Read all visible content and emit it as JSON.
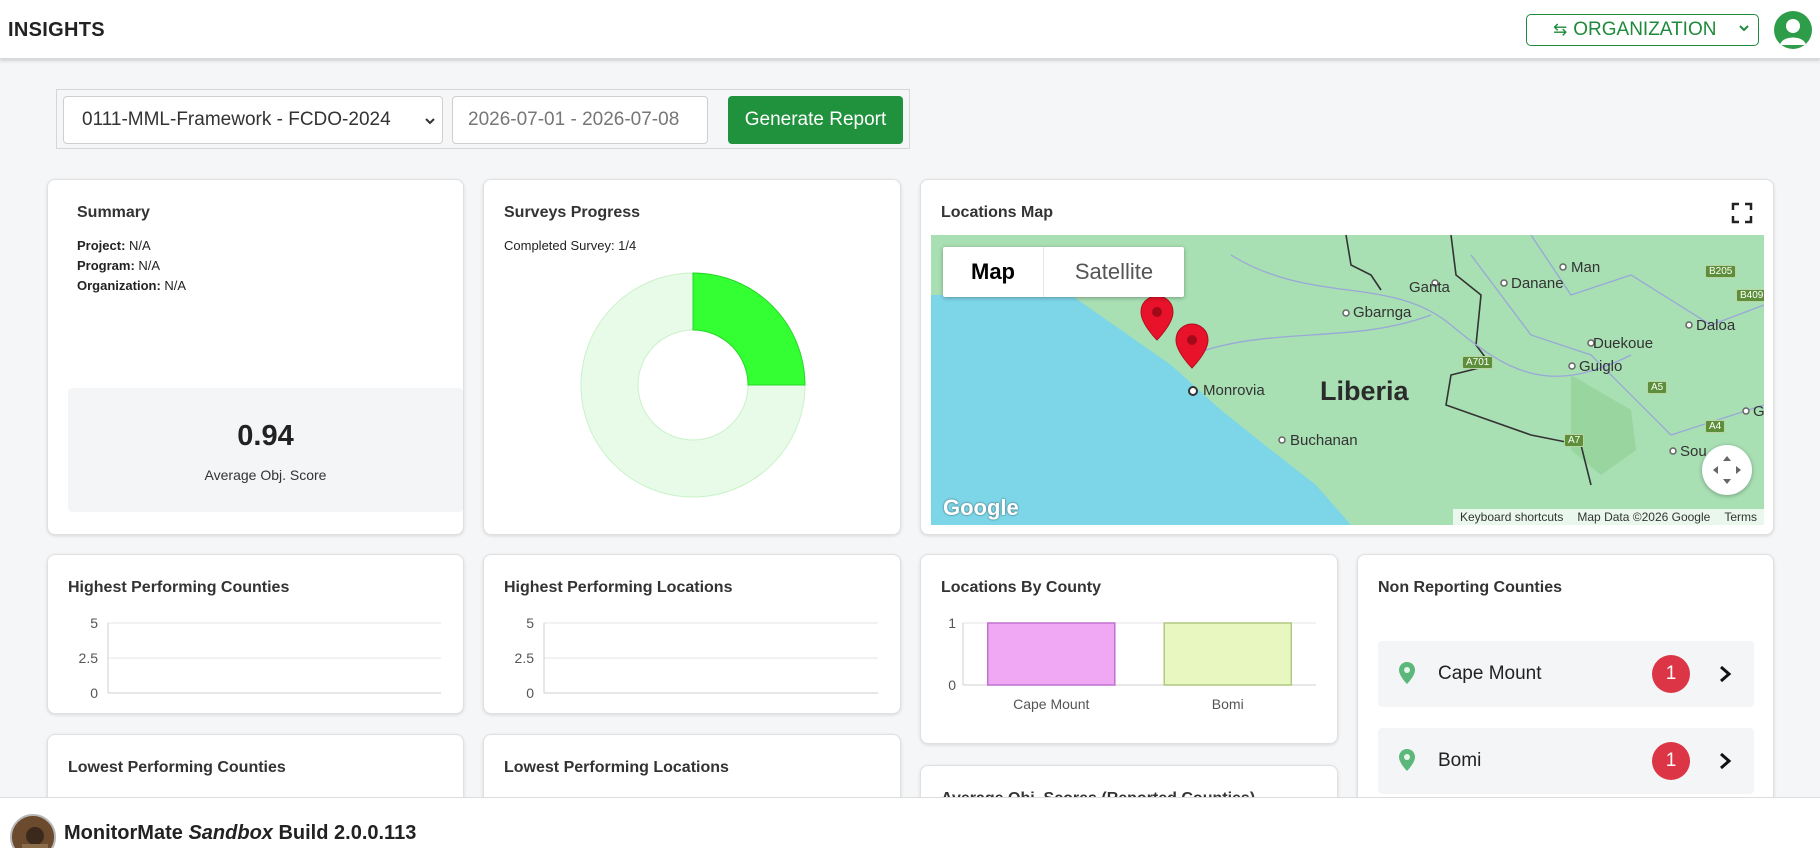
{
  "header": {
    "title": "INSIGHTS",
    "org_switch_icon": "⇆",
    "org_label": "ORGANIZATION"
  },
  "filters": {
    "project_value": "0111-MML-Framework - FCDO-2024",
    "date_range": "2026-07-01 - 2026-07-08",
    "generate_label": "Generate Report"
  },
  "summary": {
    "title": "Summary",
    "project_label": "Project:",
    "project_value": "N/A",
    "program_label": "Program:",
    "program_value": "N/A",
    "organization_label": "Organization:",
    "organization_value": "N/A",
    "score_value": "0.94",
    "score_label": "Average Obj. Score"
  },
  "surveys": {
    "title": "Surveys Progress",
    "completed_text": "Completed Survey: 1/4",
    "completed": 1,
    "total": 4,
    "colors": {
      "done": "#33ff33",
      "remaining": "#e8fbe8"
    }
  },
  "map": {
    "title": "Locations Map",
    "tab_map": "Map",
    "tab_satellite": "Satellite",
    "country_label": "Liberia",
    "places": [
      "Monrovia",
      "Gbarnga",
      "Ganta",
      "Danane",
      "Man",
      "Duekoue",
      "Daloa",
      "Guiglo",
      "Buchanan",
      "Sou",
      "G"
    ],
    "highways": [
      "B205",
      "B409",
      "A701",
      "A5",
      "A4",
      "A7"
    ],
    "google_label": "Google",
    "footer": [
      "Keyboard shortcuts",
      "Map Data ©2026 Google",
      "Terms"
    ],
    "pin_count": 2
  },
  "highest_counties": {
    "title": "Highest Performing Counties",
    "ticks": [
      "5",
      "2.5",
      "0"
    ]
  },
  "highest_locations": {
    "title": "Highest Performing Locations",
    "ticks": [
      "5",
      "2.5",
      "0"
    ]
  },
  "lowest_counties": {
    "title": "Lowest Performing Counties"
  },
  "lowest_locations": {
    "title": "Lowest Performing Locations"
  },
  "avg_scores": {
    "title": "Average Obj. Scores (Reported Counties)"
  },
  "locations_by_county": {
    "title": "Locations By County",
    "ticks": [
      "1",
      "0"
    ]
  },
  "chart_data": [
    {
      "type": "bar",
      "title": "Locations By County",
      "categories": [
        "Cape Mount",
        "Bomi"
      ],
      "values": [
        1,
        1
      ],
      "ylim": [
        0,
        1
      ],
      "colors": [
        "#f0a8f5",
        "#e8f7c0"
      ],
      "bar_borders": [
        "#c070d0",
        "#b0c880"
      ]
    }
  ],
  "non_reporting": {
    "title": "Non Reporting Counties",
    "items": [
      {
        "name": "Cape Mount",
        "count": "1"
      },
      {
        "name": "Bomi",
        "count": "1"
      }
    ]
  },
  "footer": {
    "brand": "MonitorMate",
    "env": "Sandbox",
    "build": "Build 2.0.0.113"
  }
}
